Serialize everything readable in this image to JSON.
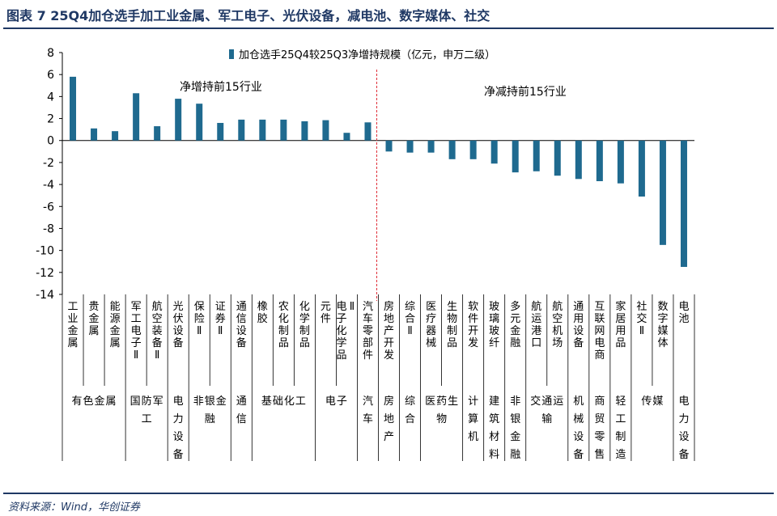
{
  "title": "图表 7   25Q4加仓选手加工业金属、军工电子、光伏设备，减电池、数字媒体、社交",
  "source": "资料来源：Wind，华创证券",
  "colors": {
    "bar": "#1f6a8f",
    "title": "#1f3864",
    "divider": "#e0303a",
    "axis": "#000000"
  },
  "chart_data": {
    "type": "bar",
    "categories": [
      "工业金属",
      "贵金属",
      "能源金属",
      "军工电子Ⅱ",
      "航空装备Ⅱ",
      "光伏设备",
      "保险Ⅱ",
      "证券Ⅱ",
      "通信设备",
      "橡胶",
      "农化制品",
      "化学制品",
      "元件",
      "电子化学品Ⅱ",
      "汽车零部件",
      "房地产开发",
      "综合Ⅱ",
      "医疗器械",
      "生物制品",
      "软件开发",
      "玻璃玻纤",
      "多元金融",
      "航运港口",
      "航空机场",
      "通用设备",
      "互联网电商",
      "家居用品",
      "社交Ⅱ",
      "数字媒体",
      "电池"
    ],
    "series": [
      {
        "name": "加仓选手25Q4较25Q3净增持规模（亿元，申万二级）",
        "values": [
          5.8,
          1.1,
          0.85,
          4.3,
          1.3,
          3.8,
          3.35,
          1.6,
          1.9,
          1.9,
          1.9,
          1.75,
          1.85,
          0.7,
          1.65,
          -1.0,
          -1.1,
          -1.1,
          -1.7,
          -1.7,
          -2.1,
          -2.9,
          -2.8,
          -3.2,
          -3.5,
          -3.7,
          -3.9,
          -5.1,
          -9.5,
          -11.5
        ]
      }
    ],
    "yticks": [
      8,
      6,
      4,
      2,
      0,
      -2,
      -4,
      -6,
      -8,
      -10,
      -12,
      -14
    ],
    "ylim": [
      -14,
      8
    ],
    "groups": [
      {
        "label": "有色金属",
        "start": 0,
        "end": 2
      },
      {
        "label": "国防军工",
        "start": 3,
        "end": 4
      },
      {
        "label": "电力设备",
        "start": 5,
        "end": 5
      },
      {
        "label": "非银金融",
        "start": 6,
        "end": 7
      },
      {
        "label": "通信",
        "start": 8,
        "end": 8
      },
      {
        "label": "基础化工",
        "start": 9,
        "end": 11
      },
      {
        "label": "电子",
        "start": 12,
        "end": 13
      },
      {
        "label": "汽车",
        "start": 14,
        "end": 14
      },
      {
        "label": "房地产",
        "start": 15,
        "end": 15
      },
      {
        "label": "综合",
        "start": 16,
        "end": 16
      },
      {
        "label": "医药生物",
        "start": 17,
        "end": 18
      },
      {
        "label": "计算机",
        "start": 19,
        "end": 19
      },
      {
        "label": "建筑材料",
        "start": 20,
        "end": 20
      },
      {
        "label": "非银金融",
        "start": 21,
        "end": 21
      },
      {
        "label": "交通运输",
        "start": 22,
        "end": 23
      },
      {
        "label": "机械设备",
        "start": 24,
        "end": 24
      },
      {
        "label": "商贸零售",
        "start": 25,
        "end": 25
      },
      {
        "label": "轻工制造",
        "start": 26,
        "end": 26
      },
      {
        "label": "传媒",
        "start": 27,
        "end": 28
      },
      {
        "label": "电力设备",
        "start": 29,
        "end": 29
      }
    ],
    "annotations": {
      "left": "净增持前15行业",
      "right": "净减持前15行业"
    },
    "divider_after_index": 14,
    "legend_position": "top-center",
    "grid": false
  }
}
